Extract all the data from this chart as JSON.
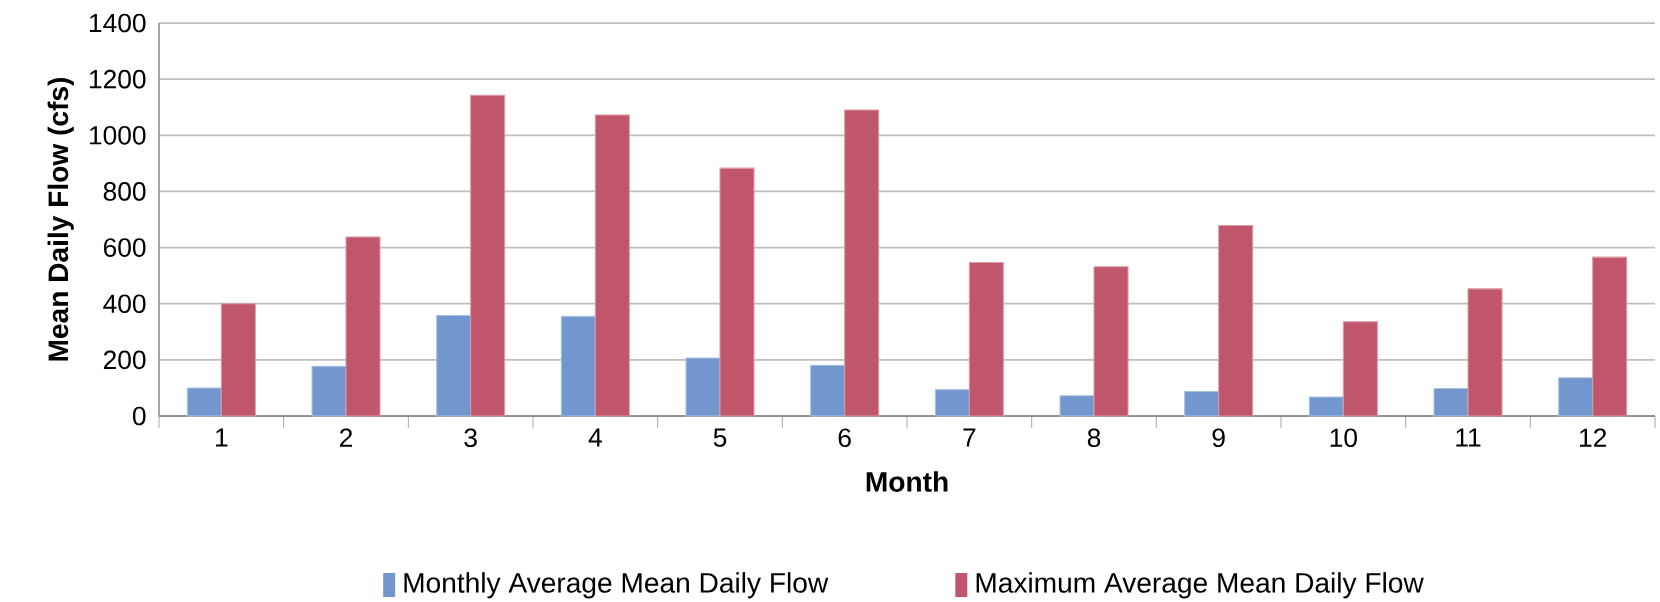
{
  "chart_data": {
    "type": "bar",
    "xlabel": "Month",
    "ylabel": "Mean Daily Flow (cfs)",
    "categories": [
      "1",
      "2",
      "3",
      "4",
      "5",
      "6",
      "7",
      "8",
      "9",
      "10",
      "11",
      "12"
    ],
    "series": [
      {
        "name": "Monthly Average Mean Daily Flow",
        "color": "#7297cf",
        "values": [
          100,
          177,
          358,
          355,
          207,
          181,
          94,
          72,
          87,
          68,
          98,
          136
        ]
      },
      {
        "name": "Maximum Average Mean Daily Flow",
        "color": "#c0566b",
        "values": [
          400,
          638,
          1143,
          1072,
          883,
          1090,
          547,
          532,
          679,
          336,
          453,
          566
        ]
      }
    ],
    "ylim": [
      0,
      1400
    ],
    "yticks": [
      0,
      200,
      400,
      600,
      800,
      1000,
      1200,
      1400
    ],
    "grid": "y",
    "legend": "bottom"
  }
}
